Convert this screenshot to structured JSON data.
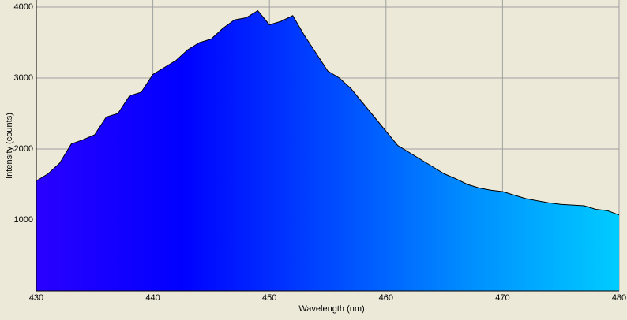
{
  "chart_data": {
    "type": "area",
    "x_label": "Wavelength (nm)",
    "y_label": "Intensity (counts)",
    "x": [
      430,
      431,
      432,
      433,
      434,
      435,
      436,
      437,
      438,
      439,
      440,
      441,
      442,
      443,
      444,
      445,
      446,
      447,
      448,
      449,
      450,
      451,
      452,
      453,
      454,
      455,
      456,
      457,
      458,
      459,
      460,
      461,
      462,
      463,
      464,
      465,
      466,
      467,
      468,
      469,
      470,
      471,
      472,
      473,
      474,
      475,
      476,
      477,
      478,
      479,
      480
    ],
    "series": [
      {
        "values": [
          1550,
          1650,
          1800,
          2070,
          2130,
          2200,
          2450,
          2500,
          2750,
          2800,
          3050,
          3150,
          3250,
          3400,
          3500,
          3550,
          3700,
          3820,
          3850,
          3950,
          3750,
          3800,
          3880,
          3600,
          3350,
          3100,
          3000,
          2850,
          2650,
          2450,
          2250,
          2050,
          1950,
          1850,
          1750,
          1650,
          1580,
          1500,
          1450,
          1420,
          1400,
          1350,
          1300,
          1270,
          1240,
          1220,
          1210,
          1200,
          1150,
          1130,
          1070
        ],
        "color": "#000000",
        "fill_colors": [
          "#2a00ff",
          "#0000ff",
          "#0048ff",
          "#0090ff",
          "#00ccff"
        ]
      }
    ],
    "xlim": [
      430,
      480
    ],
    "ylim": [
      0,
      4100
    ],
    "xticks": [
      430,
      440,
      450,
      460,
      470,
      480
    ],
    "yticks": [
      1000,
      2000,
      3000,
      4000
    ],
    "grid": true
  }
}
